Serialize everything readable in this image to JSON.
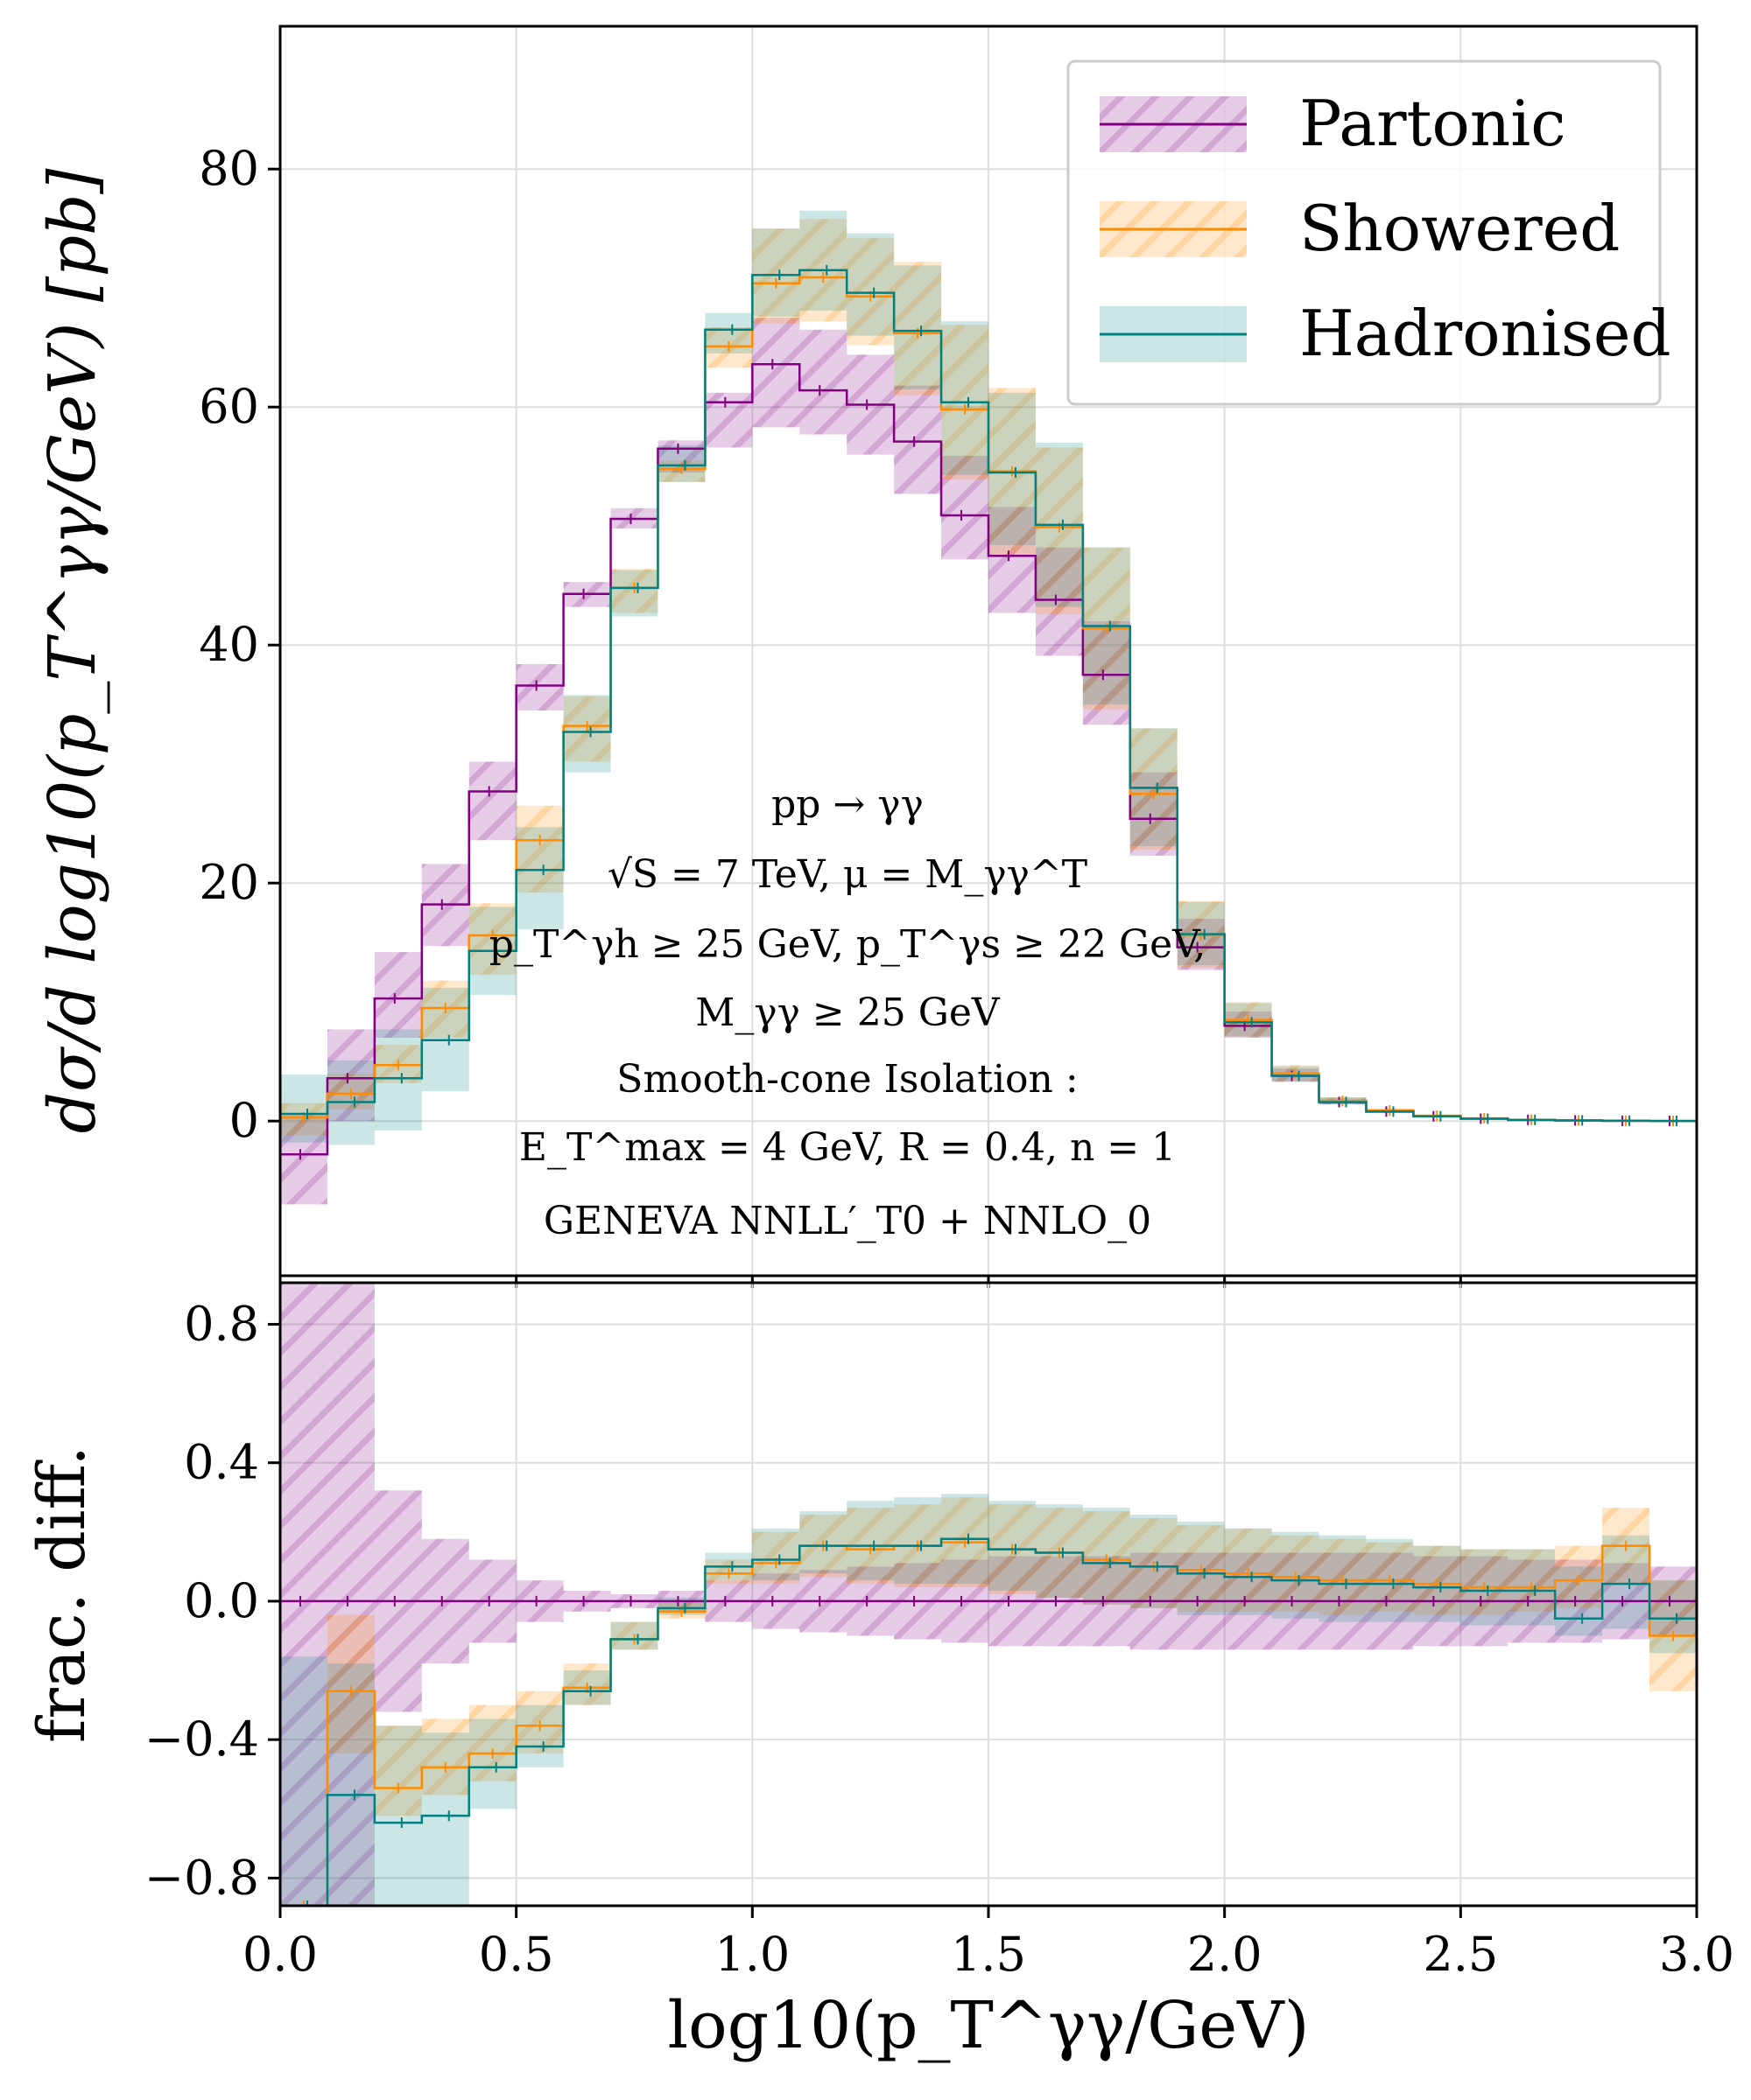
{
  "chart_data": [
    {
      "type": "line",
      "drawstyle": "step",
      "ylabel": "dσ/d log10(p_T^γγ/GeV)   [pb]",
      "xlim": [
        0.0,
        3.0
      ],
      "ylim": [
        -13,
        92
      ],
      "yticks": [
        0,
        20,
        40,
        60,
        80
      ],
      "ytick_labels": [
        "0",
        "20",
        "40",
        "60",
        "80"
      ],
      "grid": true,
      "legend": {
        "position": "top-right",
        "entries": [
          {
            "label": "Partonic",
            "color": "#800080",
            "band": "hatched"
          },
          {
            "label": "Showered",
            "color": "#ff8c00",
            "band": "hatched"
          },
          {
            "label": "Hadronised",
            "color": "#008080",
            "band": "solid"
          }
        ]
      },
      "annotation": [
        "pp → γγ",
        "√S = 7 TeV, μ = M_γγ^T",
        "p_T^γh ≥ 25 GeV,  p_T^γs ≥ 22 GeV,",
        "M_γγ ≥ 25 GeV",
        "Smooth-cone Isolation :",
        "E_T^max = 4 GeV,  R = 0.4,  n = 1",
        "GENEVA   NNLL′_T0 + NNLO_0"
      ],
      "bin_edges": [
        0.0,
        0.1,
        0.2,
        0.3,
        0.4,
        0.5,
        0.6,
        0.7,
        0.8,
        0.9,
        1.0,
        1.1,
        1.2,
        1.3,
        1.4,
        1.5,
        1.6,
        1.7,
        1.8,
        1.9,
        2.0,
        2.1,
        2.2,
        2.3,
        2.4,
        2.5,
        2.6,
        2.7,
        2.8,
        2.9,
        3.0
      ],
      "series": [
        {
          "name": "Partonic",
          "color": "#800080",
          "values": [
            -2.8,
            3.6,
            10.3,
            18.2,
            27.7,
            36.6,
            44.3,
            50.6,
            56.5,
            60.4,
            63.6,
            61.4,
            60.2,
            57.1,
            50.9,
            47.5,
            43.8,
            37.5,
            25.4,
            14.6,
            8.0,
            3.8,
            1.6,
            0.8,
            0.4,
            0.2,
            0.1,
            0.05,
            0.02,
            0.01
          ],
          "band_low": [
            -7.0,
            0.0,
            7.0,
            14.7,
            23.6,
            34.5,
            43.2,
            49.8,
            54.5,
            56.6,
            58.3,
            57.7,
            56.0,
            52.7,
            47.2,
            42.7,
            39.1,
            33.3,
            22.3,
            12.7,
            7.0,
            3.3,
            1.4,
            0.7,
            0.35,
            0.17,
            0.08,
            0.04,
            0.015,
            0.008
          ],
          "band_high": [
            0.5,
            7.7,
            14.2,
            21.6,
            30.2,
            38.4,
            45.3,
            51.5,
            57.2,
            61.2,
            67.5,
            66.5,
            64.4,
            61.8,
            55.9,
            51.6,
            48.2,
            42.0,
            29.3,
            17.0,
            9.2,
            4.4,
            1.9,
            0.9,
            0.45,
            0.23,
            0.11,
            0.06,
            0.025,
            0.012
          ]
        },
        {
          "name": "Showered",
          "color": "#ff8c00",
          "values": [
            0.3,
            2.3,
            4.7,
            9.5,
            15.6,
            23.6,
            33.2,
            44.8,
            54.8,
            65.1,
            70.4,
            70.9,
            69.3,
            66.2,
            59.8,
            54.6,
            49.9,
            41.4,
            27.5,
            15.6,
            8.5,
            4.0,
            1.7,
            0.9,
            0.45,
            0.23,
            0.11,
            0.05,
            0.02,
            0.01
          ],
          "band_low": [
            -1.2,
            1.0,
            3.2,
            7.0,
            12.3,
            19.2,
            30.2,
            42.7,
            53.7,
            63.3,
            67.0,
            67.2,
            65.2,
            61.0,
            53.9,
            47.4,
            42.6,
            34.6,
            22.8,
            12.9,
            7.1,
            3.4,
            1.4,
            0.7,
            0.37,
            0.19,
            0.09,
            0.04,
            0.015,
            0.008
          ],
          "band_high": [
            1.5,
            4.0,
            6.4,
            11.8,
            18.3,
            26.5,
            35.7,
            46.4,
            55.5,
            66.7,
            75.0,
            75.8,
            74.2,
            72.2,
            66.9,
            61.6,
            56.6,
            48.2,
            33.0,
            18.5,
            10.0,
            4.7,
            2.0,
            1.05,
            0.55,
            0.28,
            0.13,
            0.06,
            0.025,
            0.012
          ]
        },
        {
          "name": "Hadronised",
          "color": "#008080",
          "values": [
            0.6,
            1.6,
            3.6,
            6.8,
            14.3,
            21.1,
            32.7,
            44.8,
            55.1,
            66.5,
            71.1,
            71.5,
            69.6,
            66.4,
            60.4,
            54.5,
            50.1,
            41.6,
            28.0,
            15.7,
            8.3,
            3.8,
            1.6,
            0.8,
            0.4,
            0.2,
            0.1,
            0.05,
            0.02,
            0.01
          ],
          "band_low": [
            -1.8,
            -2.0,
            -0.8,
            2.5,
            10.6,
            16.1,
            29.3,
            42.4,
            53.7,
            64.5,
            67.6,
            68.1,
            66.0,
            61.5,
            54.3,
            48.4,
            43.2,
            35.0,
            23.1,
            13.1,
            7.1,
            3.3,
            1.4,
            0.7,
            0.35,
            0.17,
            0.08,
            0.04,
            0.015,
            0.008
          ],
          "band_high": [
            3.9,
            5.1,
            7.7,
            11.2,
            18.0,
            24.7,
            35.8,
            46.3,
            56.8,
            67.9,
            75.0,
            76.5,
            74.6,
            71.9,
            67.2,
            61.2,
            57.0,
            48.2,
            33.0,
            18.4,
            9.9,
            4.6,
            2.0,
            1.0,
            0.5,
            0.25,
            0.12,
            0.06,
            0.025,
            0.012
          ]
        }
      ]
    },
    {
      "type": "line",
      "drawstyle": "step",
      "ylabel": "frac. diff.",
      "xlabel": "log10(p_T^γγ/GeV)",
      "xlim": [
        0.0,
        3.0
      ],
      "ylim": [
        -0.88,
        0.92
      ],
      "xticks": [
        0.0,
        0.5,
        1.0,
        1.5,
        2.0,
        2.5,
        3.0
      ],
      "xtick_labels": [
        "0.0",
        "0.5",
        "1.0",
        "1.5",
        "2.0",
        "2.5",
        "3.0"
      ],
      "yticks": [
        -0.8,
        -0.4,
        0.0,
        0.4,
        0.8
      ],
      "ytick_labels": [
        "−0.8",
        "−0.4",
        "0.0",
        "0.4",
        "0.8"
      ],
      "grid": true,
      "bin_edges": [
        0.0,
        0.1,
        0.2,
        0.3,
        0.4,
        0.5,
        0.6,
        0.7,
        0.8,
        0.9,
        1.0,
        1.1,
        1.2,
        1.3,
        1.4,
        1.5,
        1.6,
        1.7,
        1.8,
        1.9,
        2.0,
        2.1,
        2.2,
        2.3,
        2.4,
        2.5,
        2.6,
        2.7,
        2.8,
        2.9,
        3.0
      ],
      "series": [
        {
          "name": "Partonic",
          "color": "#800080",
          "values": [
            0.0,
            0.0,
            0.0,
            0.0,
            0.0,
            0.0,
            0.0,
            0.0,
            0.0,
            0.0,
            0.0,
            0.0,
            0.0,
            0.0,
            0.0,
            0.0,
            0.0,
            0.0,
            0.0,
            0.0,
            0.0,
            0.0,
            0.0,
            0.0,
            0.0,
            0.0,
            0.0,
            0.0,
            0.0,
            0.0
          ],
          "band_low": [
            -0.88,
            -0.88,
            -0.32,
            -0.18,
            -0.12,
            -0.06,
            -0.03,
            -0.02,
            -0.03,
            -0.06,
            -0.08,
            -0.09,
            -0.1,
            -0.11,
            -0.12,
            -0.13,
            -0.13,
            -0.13,
            -0.14,
            -0.14,
            -0.14,
            -0.14,
            -0.14,
            -0.14,
            -0.13,
            -0.13,
            -0.12,
            -0.12,
            -0.11,
            -0.1
          ],
          "band_high": [
            0.92,
            0.92,
            0.32,
            0.18,
            0.12,
            0.06,
            0.03,
            0.02,
            0.03,
            0.06,
            0.08,
            0.09,
            0.1,
            0.11,
            0.12,
            0.13,
            0.13,
            0.13,
            0.14,
            0.14,
            0.14,
            0.14,
            0.14,
            0.14,
            0.13,
            0.13,
            0.12,
            0.12,
            0.11,
            0.1
          ]
        },
        {
          "name": "Showered",
          "color": "#ff8c00",
          "values": [
            -0.88,
            -0.26,
            -0.54,
            -0.48,
            -0.44,
            -0.36,
            -0.25,
            -0.11,
            -0.03,
            0.08,
            0.11,
            0.16,
            0.15,
            0.16,
            0.17,
            0.15,
            0.14,
            0.12,
            0.1,
            0.09,
            0.08,
            0.07,
            0.06,
            0.06,
            0.05,
            0.04,
            0.04,
            0.06,
            0.16,
            -0.1
          ],
          "band_low": [
            -0.88,
            -0.44,
            -0.62,
            -0.56,
            -0.52,
            -0.44,
            -0.3,
            -0.14,
            -0.05,
            0.05,
            0.05,
            0.07,
            0.05,
            0.04,
            0.04,
            0.02,
            0.01,
            -0.01,
            -0.02,
            -0.03,
            -0.03,
            -0.03,
            -0.04,
            -0.03,
            -0.04,
            -0.04,
            -0.03,
            -0.02,
            0.05,
            -0.26
          ],
          "band_high": [
            -0.88,
            -0.04,
            -0.36,
            -0.34,
            -0.3,
            -0.26,
            -0.18,
            -0.06,
            0.0,
            0.12,
            0.2,
            0.25,
            0.27,
            0.28,
            0.3,
            0.28,
            0.27,
            0.26,
            0.24,
            0.22,
            0.21,
            0.19,
            0.18,
            0.17,
            0.16,
            0.15,
            0.15,
            0.16,
            0.27,
            0.06
          ]
        },
        {
          "name": "Hadronised",
          "color": "#008080",
          "values": [
            -0.88,
            -0.56,
            -0.64,
            -0.62,
            -0.48,
            -0.42,
            -0.26,
            -0.11,
            -0.02,
            0.1,
            0.12,
            0.16,
            0.16,
            0.16,
            0.18,
            0.15,
            0.14,
            0.11,
            0.1,
            0.08,
            0.07,
            0.06,
            0.05,
            0.05,
            0.04,
            0.03,
            0.03,
            -0.05,
            0.05,
            -0.05
          ],
          "band_low": [
            -0.88,
            -0.88,
            -0.88,
            -0.88,
            -0.6,
            -0.48,
            -0.3,
            -0.14,
            -0.04,
            0.06,
            0.06,
            0.08,
            0.06,
            0.05,
            0.05,
            0.03,
            0.01,
            -0.01,
            -0.02,
            -0.04,
            -0.04,
            -0.05,
            -0.06,
            -0.06,
            -0.06,
            -0.07,
            -0.07,
            -0.1,
            -0.08,
            -0.15
          ],
          "band_high": [
            -0.16,
            -0.18,
            -0.36,
            -0.38,
            -0.34,
            -0.3,
            -0.2,
            -0.06,
            0.01,
            0.14,
            0.21,
            0.26,
            0.29,
            0.3,
            0.31,
            0.29,
            0.28,
            0.27,
            0.25,
            0.23,
            0.21,
            0.2,
            0.19,
            0.18,
            0.16,
            0.15,
            0.15,
            0.1,
            0.19,
            0.06
          ]
        }
      ]
    }
  ]
}
